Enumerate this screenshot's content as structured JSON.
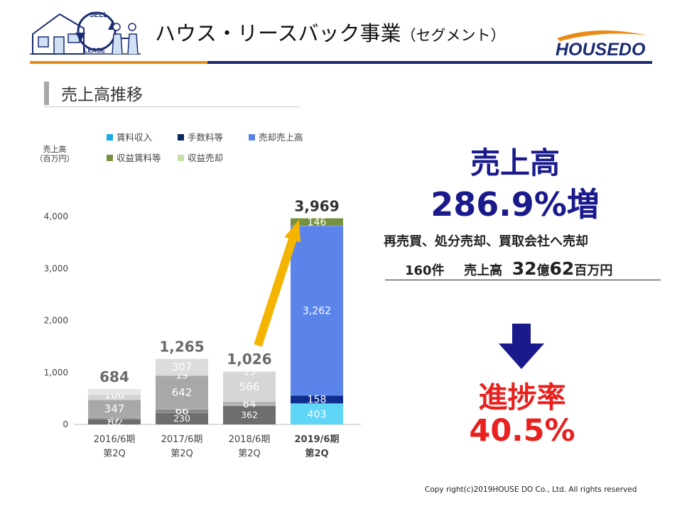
{
  "header": {
    "title_main": "ハウス・リースバック事業",
    "title_segment": "（セグメント）",
    "logo_sell_text": "SELL",
    "logo_lease_text": "LEASE",
    "brand_logo_text": "HOUSEDO"
  },
  "section": {
    "title": "売上高推移"
  },
  "chart_data": {
    "type": "bar",
    "stacked": true,
    "ylabel": "売上高\n（百万円）",
    "ylim": [
      0,
      4000
    ],
    "yticks": [
      "0",
      "1,000",
      "2,000",
      "3,000",
      "4,000"
    ],
    "grid": false,
    "legend_position": "top",
    "categories": [
      {
        "line1": "2016/6期",
        "line2": "第2Q",
        "bold": false
      },
      {
        "line1": "2017/6期",
        "line2": "第2Q",
        "bold": false
      },
      {
        "line1": "2018/6期",
        "line2": "第2Q",
        "bold": false
      },
      {
        "line1": "2019/6期",
        "line2": "第2Q",
        "bold": true
      }
    ],
    "series": [
      {
        "name": "賃料収入",
        "values": [
          102,
          230,
          362,
          403
        ],
        "labels": [
          "102",
          "230",
          "362",
          "403"
        ],
        "colors": [
          "#6e6e6e",
          "#6e6e6e",
          "#6e6e6e",
          "#5fd5f8"
        ],
        "legend_color": "#18aee6"
      },
      {
        "name": "手数料等",
        "values": [
          27,
          66,
          84,
          158
        ],
        "labels": [
          "27",
          "66",
          "84",
          "158"
        ],
        "colors": [
          "#888888",
          "#888888",
          "#b4b4b4",
          "#0e2e90"
        ],
        "legend_color": "#0b2860"
      },
      {
        "name": "売却売上高",
        "values": [
          347,
          642,
          566,
          3262
        ],
        "labels": [
          "347",
          "642",
          "566",
          "3,262"
        ],
        "colors": [
          "#a8a8a8",
          "#a8a8a8",
          "#d6d6d6",
          "#5b84ea"
        ],
        "legend_color": "#5b84ea"
      },
      {
        "name": "収益賃料等",
        "values": [
          100,
          19,
          13,
          146
        ],
        "labels": [
          "100",
          "19",
          "13",
          "146"
        ],
        "colors": [
          "#d4d4d4",
          "#c4c4c4",
          "#d6d6d6",
          "#76913e"
        ],
        "legend_color": "#76913e"
      },
      {
        "name": "収益売却",
        "values": [
          108,
          307,
          1,
          0
        ],
        "labels": [
          "",
          "307",
          "",
          ""
        ],
        "colors": [
          "#e6e6e6",
          "#dcdcdc",
          "#e4e4e4",
          "#c5dfa4"
        ],
        "legend_color": "#c5dfa4"
      }
    ],
    "totals": [
      684,
      1265,
      1026,
      3969
    ],
    "total_labels": [
      "684",
      "1,265",
      "1,026",
      "3,969"
    ],
    "annotation": {
      "type": "arrow",
      "from_category": 2,
      "to_category": 3,
      "color": "#f5b400"
    }
  },
  "highlight": {
    "sales_title": "売上高",
    "sales_growth": "286.9%増",
    "detail_line1": "再売買、処分売却、買取会社へ売却",
    "detail_count": "160件",
    "detail_sales_label": "売上高",
    "detail_amount_a": "32",
    "detail_unit_a": "億",
    "detail_amount_b": "62",
    "detail_unit_b": "百万円",
    "arrow_icon": "down-arrow-icon",
    "progress_label": "進捗率",
    "progress_value": "40.5%",
    "navy": "#1a1a8c",
    "red": "#e8201e"
  },
  "footer": {
    "copyright": "Copy right(c)2019HOUSE DO Co., Ltd. All rights reserved"
  }
}
